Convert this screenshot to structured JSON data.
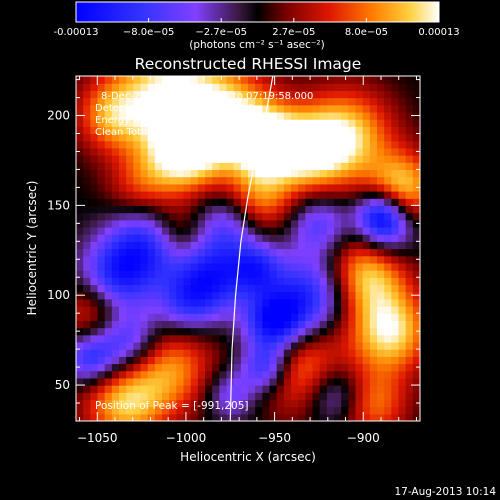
{
  "colorbar": {
    "ticks": [
      "-0.00013",
      "−8.0e−05",
      "−2.7e−05",
      "2.7e−05",
      "8.0e−05",
      "0.00013"
    ],
    "unit_label": "(photons cm⁻² s⁻¹ asec⁻²)"
  },
  "chart_data": {
    "type": "heatmap",
    "title": "Reconstructed RHESSI Image",
    "xlabel": "Heliocentric X (arcsec)",
    "ylabel": "Heliocentric Y (arcsec)",
    "xlim": [
      -1062,
      -868
    ],
    "ylim": [
      30,
      222
    ],
    "xticks": [
      -1050,
      -1000,
      -950,
      -900
    ],
    "xtick_labels": [
      "−1050",
      "−1000",
      "−950",
      "−900"
    ],
    "yticks": [
      50,
      100,
      150,
      200
    ],
    "ytick_labels": [
      "50",
      "100",
      "150",
      "200"
    ],
    "value_range": [
      -0.00013,
      0.00013
    ],
    "colormap": "red-temperature with blue negative",
    "grid": false,
    "blobs": [
      {
        "x": -1010,
        "y": 215,
        "w": 22,
        "v": 0.00012
      },
      {
        "x": -1000,
        "y": 180,
        "w": 16,
        "v": 0.00013
      },
      {
        "x": -975,
        "y": 200,
        "w": 18,
        "v": 0.0001
      },
      {
        "x": -955,
        "y": 185,
        "w": 14,
        "v": 0.00012
      },
      {
        "x": -930,
        "y": 180,
        "w": 16,
        "v": 0.00011
      },
      {
        "x": -908,
        "y": 190,
        "w": 18,
        "v": 0.0001
      },
      {
        "x": -878,
        "y": 160,
        "w": 14,
        "v": 0.00011
      },
      {
        "x": -960,
        "y": 152,
        "w": 14,
        "v": 9e-05
      },
      {
        "x": -1042,
        "y": 200,
        "w": 14,
        "v": 8e-05
      },
      {
        "x": -1025,
        "y": 160,
        "w": 14,
        "v": 6e-05
      },
      {
        "x": -898,
        "y": 112,
        "w": 16,
        "v": 0.00011
      },
      {
        "x": -885,
        "y": 80,
        "w": 16,
        "v": 0.00012
      },
      {
        "x": -935,
        "y": 60,
        "w": 18,
        "v": 9e-05
      },
      {
        "x": -1010,
        "y": 60,
        "w": 18,
        "v": 9e-05
      },
      {
        "x": -1050,
        "y": 90,
        "w": 14,
        "v": 8e-05
      },
      {
        "x": -1035,
        "y": 40,
        "w": 16,
        "v": 0.0001
      },
      {
        "x": -895,
        "y": 40,
        "w": 14,
        "v": 8e-05
      },
      {
        "x": -1005,
        "y": 135,
        "w": 12,
        "v": 7e-05
      },
      {
        "x": -1020,
        "y": 130,
        "w": 16,
        "v": -0.00011
      },
      {
        "x": -975,
        "y": 140,
        "w": 14,
        "v": -8e-05
      },
      {
        "x": -1040,
        "y": 110,
        "w": 14,
        "v": -0.0001
      },
      {
        "x": -1035,
        "y": 75,
        "w": 14,
        "v": -0.00011
      },
      {
        "x": -1055,
        "y": 65,
        "w": 10,
        "v": -8e-05
      },
      {
        "x": -985,
        "y": 110,
        "w": 14,
        "v": -0.0001
      },
      {
        "x": -950,
        "y": 85,
        "w": 12,
        "v": -0.00013
      },
      {
        "x": -930,
        "y": 100,
        "w": 16,
        "v": -0.0001
      },
      {
        "x": -960,
        "y": 115,
        "w": 10,
        "v": -8e-05
      },
      {
        "x": -925,
        "y": 140,
        "w": 12,
        "v": -7e-05
      },
      {
        "x": -885,
        "y": 135,
        "w": 12,
        "v": -6e-05
      },
      {
        "x": -1000,
        "y": 95,
        "w": 12,
        "v": -7e-05
      },
      {
        "x": -955,
        "y": 60,
        "w": 10,
        "v": -0.0001
      },
      {
        "x": -915,
        "y": 45,
        "w": 12,
        "v": -8e-05
      },
      {
        "x": -975,
        "y": 45,
        "w": 10,
        "v": -6e-05
      },
      {
        "x": -890,
        "y": 145,
        "w": 10,
        "v": -0.00012
      }
    ],
    "limb_curve": [
      [
        -951,
        222
      ],
      [
        -955,
        200
      ],
      [
        -960,
        180
      ],
      [
        -965,
        155
      ],
      [
        -969,
        130
      ],
      [
        -972,
        100
      ],
      [
        -974,
        70
      ],
      [
        -975,
        30
      ]
    ],
    "annotations": [
      "8-Dec-2011 07:15:56.000 to 07:19:58.000",
      "Detectors: 4F 5F 6F 7F 8F, Att 0",
      "Energy Range: 25.0 - 50.0 keV",
      "Clean    Total counts: 7.12E+03"
    ],
    "peak_label": "Position of Peak = [-991,205]"
  },
  "footer_date": "17-Aug-2013 10:14"
}
